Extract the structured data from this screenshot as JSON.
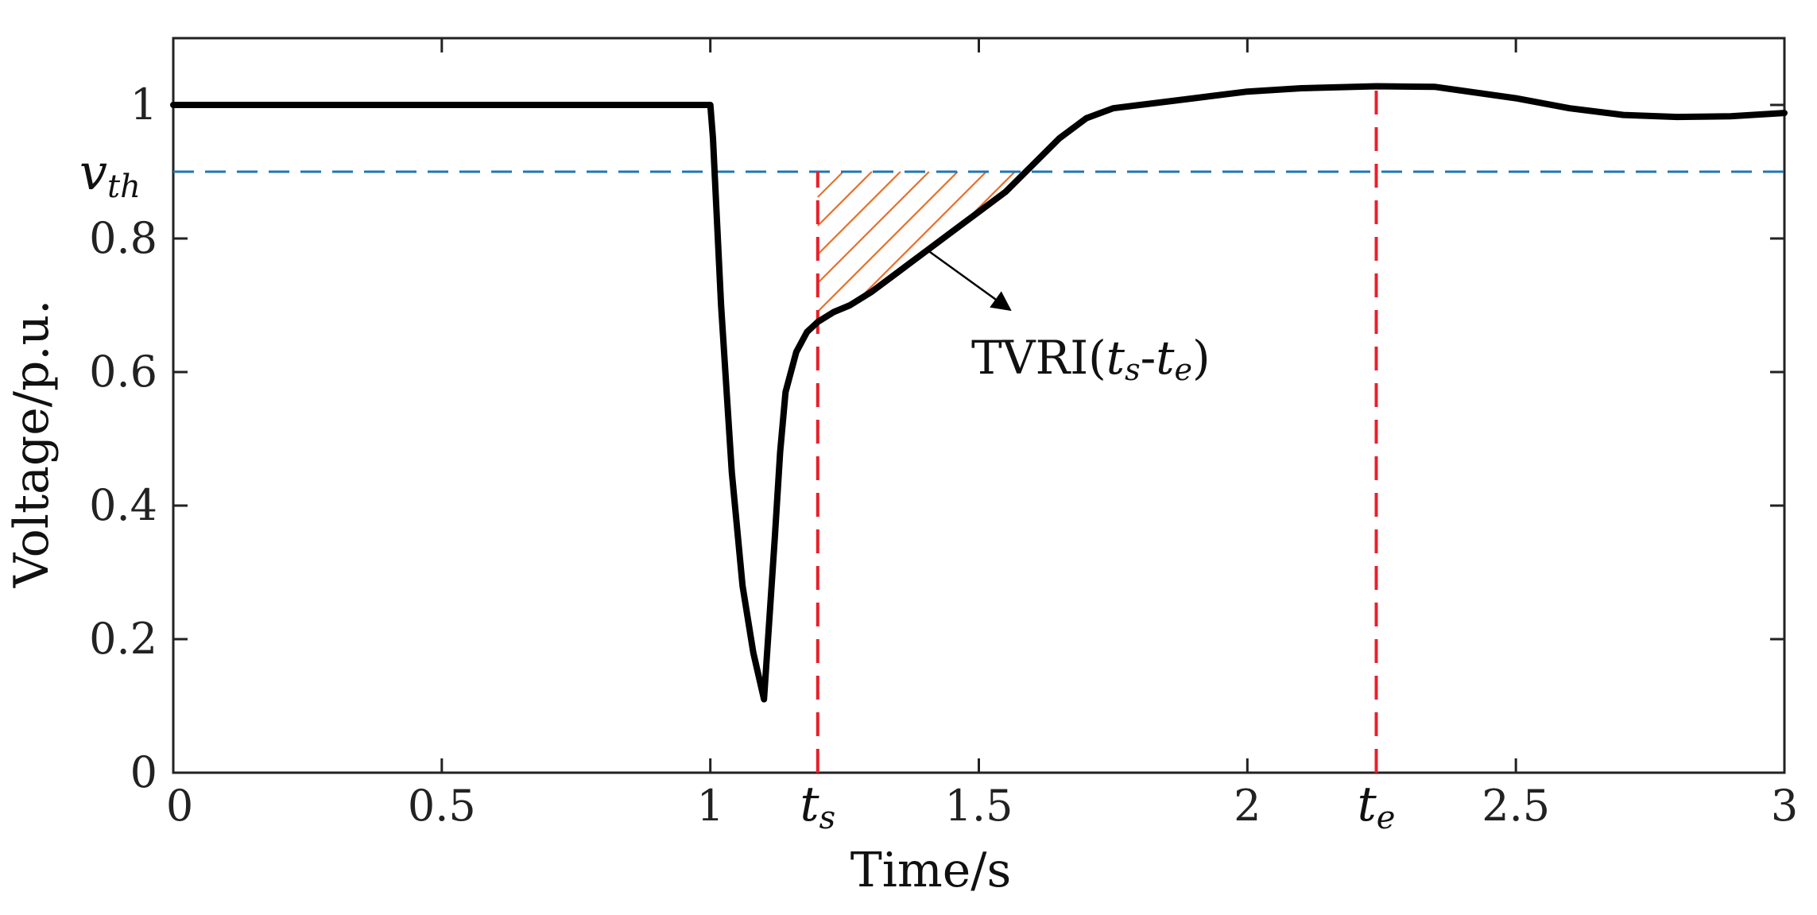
{
  "chart_data": {
    "type": "line",
    "xlabel": "Time/s",
    "ylabel": "Voltage/p.u.",
    "xlim": [
      0,
      3
    ],
    "ylim": [
      0,
      1.1
    ],
    "grid": false,
    "x_ticks": [
      0,
      0.5,
      1,
      1.5,
      2,
      2.5,
      3
    ],
    "x_tick_labels": [
      "0",
      "0.5",
      "1",
      "1.5",
      "2",
      "2.5",
      "3"
    ],
    "y_ticks": [
      0,
      0.2,
      0.4,
      0.6,
      0.8,
      1
    ],
    "y_tick_labels": [
      "0",
      "0.2",
      "0.4",
      "0.6",
      "0.8",
      "1"
    ],
    "threshold": {
      "name": "v_th",
      "label_main": "v",
      "label_sub": "th",
      "value": 0.9,
      "color": "#1f77b4"
    },
    "markers": [
      {
        "name": "t_s",
        "label_main": "t",
        "label_sub": "s",
        "x": 1.2,
        "color": "#e8202a"
      },
      {
        "name": "t_e",
        "label_main": "t",
        "label_sub": "e",
        "x": 2.24,
        "color": "#e8202a"
      }
    ],
    "annotation": {
      "text_main": "TVRI(",
      "t1_main": "t",
      "t1_sub": "s",
      "dash": "-",
      "t2_main": "t",
      "t2_sub": "e",
      "close": ")",
      "hatch_color": "#e8702a"
    },
    "series": [
      {
        "name": "Voltage",
        "color": "#000000",
        "x": [
          0,
          0.5,
          0.99,
          1.0,
          1.005,
          1.02,
          1.04,
          1.06,
          1.08,
          1.1,
          1.12,
          1.13,
          1.14,
          1.16,
          1.18,
          1.2,
          1.23,
          1.26,
          1.3,
          1.35,
          1.4,
          1.45,
          1.5,
          1.55,
          1.6,
          1.65,
          1.7,
          1.75,
          1.8,
          1.9,
          2.0,
          2.1,
          2.24,
          2.35,
          2.5,
          2.6,
          2.7,
          2.8,
          2.9,
          3.0
        ],
        "y": [
          1.0,
          1.0,
          1.0,
          1.0,
          0.95,
          0.7,
          0.45,
          0.28,
          0.18,
          0.11,
          0.35,
          0.48,
          0.57,
          0.63,
          0.66,
          0.675,
          0.69,
          0.7,
          0.72,
          0.75,
          0.78,
          0.81,
          0.84,
          0.87,
          0.91,
          0.95,
          0.98,
          0.995,
          1.0,
          1.01,
          1.02,
          1.025,
          1.028,
          1.027,
          1.01,
          0.995,
          0.985,
          0.982,
          0.983,
          0.988
        ]
      }
    ]
  }
}
